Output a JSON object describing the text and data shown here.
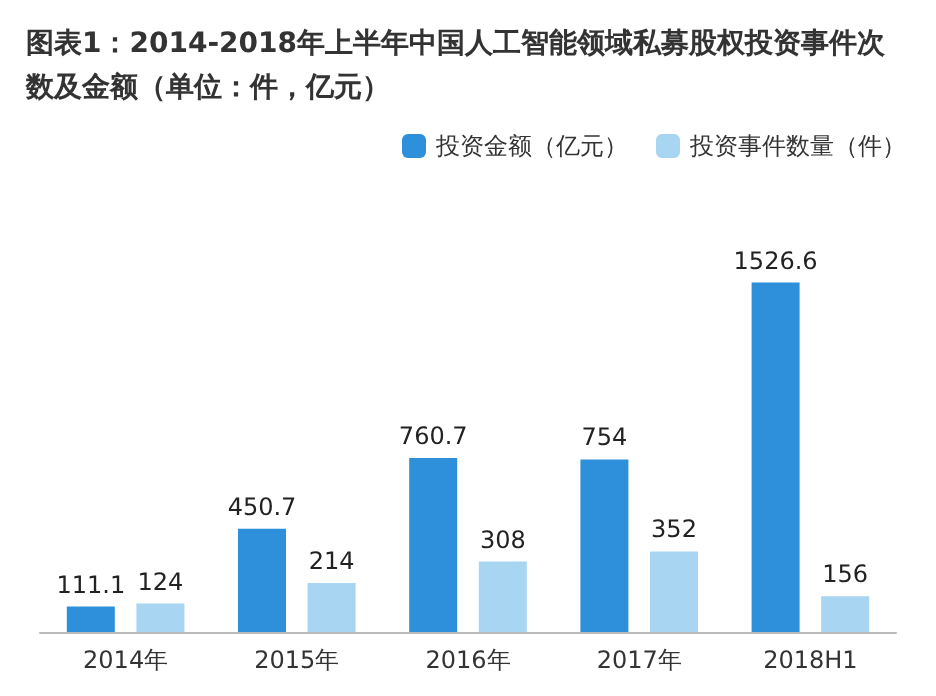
{
  "chart_data": {
    "type": "bar",
    "title": "图表1：2014-2018年上半年中国人工智能领域私募股权投资事件次数及金额（单位：件，亿元）",
    "categories": [
      "2014年",
      "2015年",
      "2016年",
      "2017年",
      "2018H1"
    ],
    "series": [
      {
        "name": "投资金额（亿元）",
        "color": "#2e8fdb",
        "values": [
          111.1,
          450.7,
          760.7,
          754,
          1526.6
        ]
      },
      {
        "name": "投资事件数量（件）",
        "color": "#a8d5f2",
        "values": [
          124,
          214,
          308,
          352,
          156
        ]
      }
    ],
    "data_labels": true,
    "legend": "top right"
  }
}
